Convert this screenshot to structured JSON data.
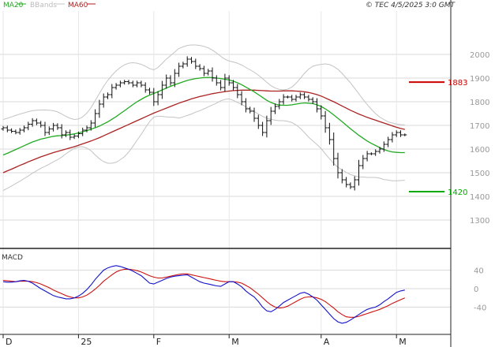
{
  "legend": {
    "ma20": "MA20",
    "bbands": "BBands",
    "ma60": "MA60"
  },
  "timestamp": "© TEC 4/5/2025 3:0 GMT",
  "colors": {
    "background": "#ffffff",
    "grid": "#d8d8d8",
    "axis": "#222222",
    "price": "#111111",
    "ma20": "#22aa22",
    "ma60": "#aa2222",
    "bbands": "#c4c4c4",
    "resistance": "#cc0000",
    "support": "#00aa00",
    "macd": "#1111cc",
    "signal": "#cc1111",
    "tick_text": "#999999"
  },
  "chart_data": [
    {
      "type": "ohlc",
      "y_ticks": [
        1300,
        1400,
        1500,
        1600,
        1700,
        1800,
        1900,
        2000
      ],
      "ylim": [
        1200,
        2050
      ],
      "x_labels": [
        "D",
        "25",
        "F",
        "M",
        "A",
        "M"
      ],
      "x_label_index": [
        0,
        18,
        36,
        54,
        76,
        94
      ],
      "n_bars": 97,
      "levels": [
        {
          "name": "resistance",
          "value": 1883,
          "label": "1883"
        },
        {
          "name": "support",
          "value": 1420,
          "label": "1420"
        }
      ],
      "close": [
        1690,
        1680,
        1675,
        1670,
        1680,
        1690,
        1705,
        1720,
        1710,
        1700,
        1670,
        1685,
        1700,
        1690,
        1660,
        1670,
        1650,
        1655,
        1665,
        1680,
        1690,
        1710,
        1750,
        1790,
        1820,
        1830,
        1860,
        1870,
        1880,
        1885,
        1880,
        1870,
        1880,
        1870,
        1850,
        1840,
        1800,
        1830,
        1870,
        1900,
        1880,
        1920,
        1950,
        1960,
        1980,
        1970,
        1950,
        1940,
        1920,
        1930,
        1900,
        1880,
        1860,
        1900,
        1880,
        1860,
        1830,
        1800,
        1770,
        1760,
        1730,
        1700,
        1670,
        1720,
        1760,
        1780,
        1800,
        1820,
        1820,
        1810,
        1820,
        1830,
        1820,
        1810,
        1800,
        1770,
        1740,
        1690,
        1640,
        1560,
        1500,
        1470,
        1450,
        1440,
        1470,
        1530,
        1560,
        1580,
        1580,
        1590,
        1600,
        1620,
        1640,
        1660,
        1670,
        1660,
        1660
      ],
      "ma20": [
        1575,
        1582,
        1590,
        1598,
        1606,
        1614,
        1622,
        1630,
        1636,
        1642,
        1646,
        1650,
        1654,
        1656,
        1657,
        1659,
        1661,
        1664,
        1668,
        1673,
        1678,
        1684,
        1690,
        1697,
        1706,
        1715,
        1726,
        1737,
        1750,
        1762,
        1775,
        1788,
        1800,
        1810,
        1820,
        1828,
        1835,
        1842,
        1850,
        1858,
        1865,
        1872,
        1878,
        1884,
        1890,
        1894,
        1898,
        1900,
        1902,
        1903,
        1902,
        1900,
        1898,
        1895,
        1892,
        1887,
        1880,
        1872,
        1862,
        1852,
        1842,
        1830,
        1818,
        1806,
        1797,
        1790,
        1786,
        1785,
        1785,
        1787,
        1790,
        1793,
        1795,
        1794,
        1792,
        1787,
        1780,
        1770,
        1758,
        1744,
        1730,
        1716,
        1701,
        1686,
        1672,
        1658,
        1646,
        1634,
        1624,
        1615,
        1606,
        1598,
        1592,
        1588,
        1586,
        1585,
        1585
      ],
      "ma60": [
        1500,
        1508,
        1515,
        1523,
        1531,
        1538,
        1546,
        1553,
        1560,
        1567,
        1573,
        1579,
        1585,
        1590,
        1595,
        1600,
        1605,
        1610,
        1616,
        1622,
        1628,
        1634,
        1641,
        1648,
        1656,
        1664,
        1672,
        1680,
        1688,
        1696,
        1704,
        1712,
        1720,
        1728,
        1736,
        1744,
        1752,
        1759,
        1766,
        1773,
        1780,
        1787,
        1794,
        1800,
        1806,
        1812,
        1817,
        1822,
        1826,
        1830,
        1834,
        1837,
        1840,
        1843,
        1845,
        1847,
        1848,
        1849,
        1849,
        1849,
        1849,
        1848,
        1847,
        1846,
        1845,
        1845,
        1845,
        1846,
        1846,
        1846,
        1845,
        1844,
        1842,
        1839,
        1835,
        1830,
        1824,
        1816,
        1808,
        1800,
        1791,
        1782,
        1773,
        1764,
        1756,
        1748,
        1741,
        1734,
        1728,
        1722,
        1716,
        1710,
        1704,
        1698,
        1692,
        1687,
        1683
      ],
      "bb_upper": [
        1725,
        1730,
        1736,
        1742,
        1748,
        1753,
        1758,
        1762,
        1764,
        1765,
        1765,
        1764,
        1762,
        1757,
        1748,
        1738,
        1730,
        1725,
        1727,
        1736,
        1752,
        1775,
        1805,
        1835,
        1865,
        1890,
        1912,
        1930,
        1945,
        1956,
        1963,
        1965,
        1963,
        1958,
        1950,
        1940,
        1935,
        1945,
        1962,
        1980,
        1995,
        2010,
        2025,
        2032,
        2038,
        2040,
        2040,
        2038,
        2034,
        2028,
        2018,
        2006,
        1992,
        1980,
        1972,
        1968,
        1963,
        1955,
        1945,
        1935,
        1925,
        1912,
        1898,
        1882,
        1868,
        1858,
        1852,
        1850,
        1853,
        1862,
        1878,
        1898,
        1920,
        1938,
        1950,
        1955,
        1958,
        1960,
        1957,
        1949,
        1937,
        1920,
        1900,
        1880,
        1857,
        1834,
        1810,
        1788,
        1768,
        1750,
        1735,
        1725,
        1715,
        1710,
        1706,
        1703,
        1702
      ],
      "bb_lower": [
        1425,
        1434,
        1444,
        1454,
        1464,
        1475,
        1486,
        1498,
        1508,
        1519,
        1527,
        1536,
        1546,
        1555,
        1566,
        1580,
        1592,
        1603,
        1609,
        1610,
        1604,
        1593,
        1575,
        1559,
        1547,
        1540,
        1540,
        1544,
        1555,
        1568,
        1587,
        1611,
        1637,
        1662,
        1690,
        1716,
        1735,
        1739,
        1738,
        1736,
        1735,
        1734,
        1731,
        1736,
        1742,
        1748,
        1756,
        1762,
        1770,
        1778,
        1786,
        1794,
        1804,
        1810,
        1812,
        1806,
        1797,
        1789,
        1779,
        1769,
        1759,
        1748,
        1738,
        1730,
        1726,
        1722,
        1720,
        1720,
        1717,
        1712,
        1702,
        1688,
        1670,
        1650,
        1634,
        1619,
        1602,
        1580,
        1559,
        1539,
        1523,
        1512,
        1502,
        1492,
        1487,
        1482,
        1482,
        1480,
        1480,
        1480,
        1477,
        1471,
        1469,
        1466,
        1466,
        1467,
        1468
      ]
    },
    {
      "type": "line",
      "title": "MACD",
      "y_ticks": [
        40,
        0,
        -40
      ],
      "y_tick_labels": [
        "40",
        "0",
        "-40"
      ],
      "ylim": [
        -80,
        80
      ],
      "series": [
        {
          "name": "MACD",
          "values": [
            15,
            14,
            14,
            15,
            17,
            18,
            16,
            12,
            6,
            0,
            -5,
            -10,
            -15,
            -18,
            -20,
            -22,
            -22,
            -20,
            -16,
            -10,
            -2,
            8,
            20,
            30,
            40,
            45,
            48,
            50,
            48,
            45,
            42,
            38,
            33,
            28,
            20,
            12,
            10,
            14,
            18,
            22,
            25,
            27,
            28,
            29,
            30,
            25,
            20,
            15,
            12,
            10,
            8,
            6,
            5,
            10,
            15,
            15,
            10,
            4,
            -5,
            -12,
            -18,
            -28,
            -40,
            -48,
            -50,
            -45,
            -38,
            -30,
            -25,
            -20,
            -15,
            -10,
            -8,
            -12,
            -18,
            -25,
            -35,
            -45,
            -55,
            -65,
            -72,
            -75,
            -73,
            -68,
            -62,
            -56,
            -50,
            -45,
            -42,
            -40,
            -35,
            -28,
            -22,
            -15,
            -8,
            -5,
            -3
          ]
        },
        {
          "name": "Signal",
          "values": [
            18,
            17,
            16,
            15,
            16,
            16,
            16,
            15,
            13,
            10,
            6,
            2,
            -3,
            -7,
            -11,
            -15,
            -18,
            -20,
            -20,
            -18,
            -14,
            -8,
            -1,
            7,
            16,
            23,
            30,
            36,
            40,
            42,
            42,
            41,
            39,
            36,
            32,
            28,
            25,
            23,
            23,
            25,
            27,
            29,
            31,
            32,
            32,
            30,
            28,
            26,
            24,
            22,
            20,
            18,
            16,
            15,
            15,
            15,
            14,
            12,
            7,
            2,
            -5,
            -12,
            -20,
            -28,
            -35,
            -40,
            -42,
            -41,
            -38,
            -33,
            -28,
            -23,
            -19,
            -18,
            -18,
            -20,
            -23,
            -28,
            -35,
            -42,
            -50,
            -56,
            -61,
            -62,
            -62,
            -60,
            -57,
            -54,
            -51,
            -48,
            -45,
            -41,
            -37,
            -32,
            -28,
            -24,
            -20
          ]
        }
      ]
    }
  ]
}
